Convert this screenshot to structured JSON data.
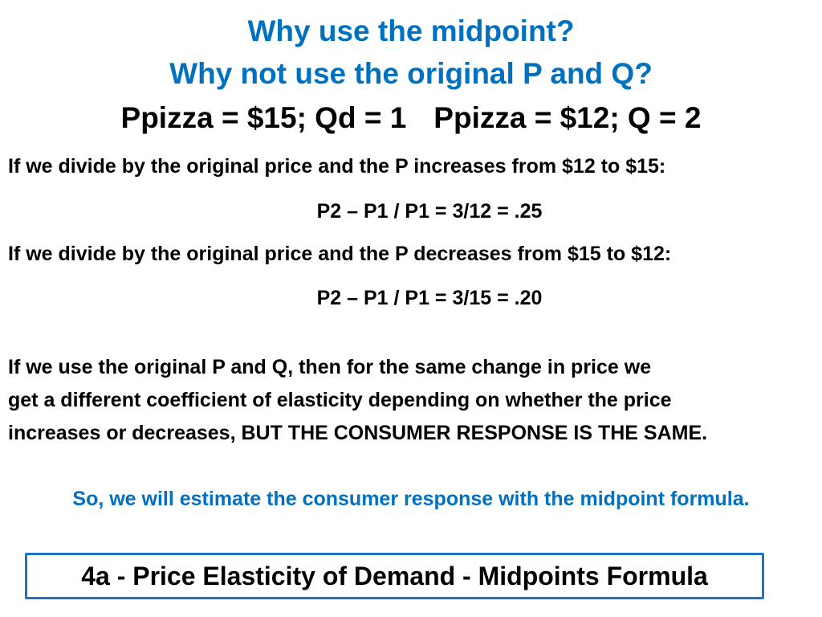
{
  "title": {
    "line1": "Why use the midpoint?",
    "line2": "Why not use the original P and Q?"
  },
  "given": {
    "left": "Ppizza = $15; Qd = 1",
    "right": "Ppizza = $12; Q = 2"
  },
  "examples": [
    {
      "statement": "If we divide by the original price and the P increases from $12 to $15:",
      "formula": "P2 – P1 / P1 = 3/12 = .25"
    },
    {
      "statement": "If we divide by the original price and the P decreases from $15 to $12:",
      "formula": "P2 – P1 / P1 = 3/15 = .20"
    }
  ],
  "explanation": {
    "line1": "If we use the original P and Q, then for the same change in price we",
    "line2": "get a different coefficient of elasticity depending on whether the price",
    "line3": "increases or decreases, BUT THE CONSUMER RESPONSE IS THE SAME."
  },
  "conclusion": "So, we will estimate the consumer response with the midpoint formula.",
  "footer": "4a - Price Elasticity of Demand - Midpoints Formula",
  "colors": {
    "accent_blue": "#0070c0",
    "footer_border": "#1e73c9"
  }
}
